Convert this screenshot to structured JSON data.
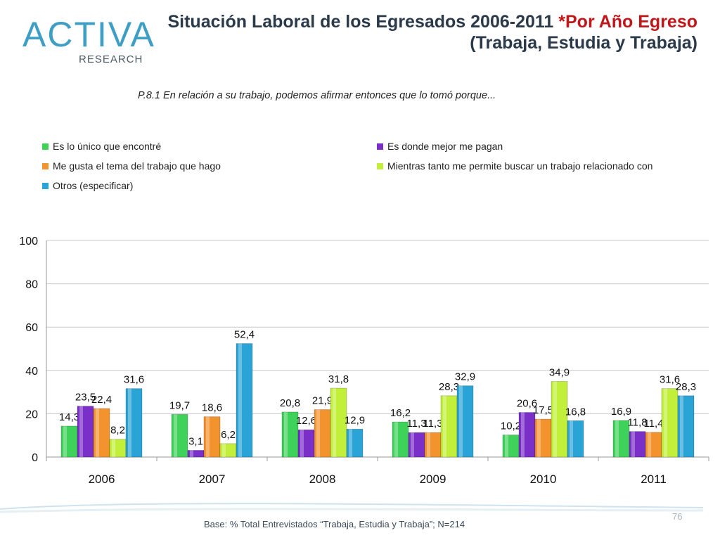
{
  "brand": {
    "name": "ACTIVA",
    "sub": "RESEARCH"
  },
  "title": {
    "main": "Situación Laboral de los Egresados 2006-2011 ",
    "accent": "*Por Año Egreso",
    "line2": "(Trabaja, Estudia y Trabaja)"
  },
  "subtitle": "P.8.1 En relación a su trabajo, podemos afirmar entonces que lo tomó porque...",
  "colors": {
    "green": "#3fd25a",
    "purple": "#7a2fc8",
    "orange": "#f3932e",
    "lime": "#c2ef3a",
    "teal": "#2aa4d6",
    "title": "#2a3a4a",
    "accent": "#c0171b"
  },
  "chart_data": {
    "type": "bar",
    "title": "",
    "xlabel": "",
    "ylabel": "",
    "ylim": [
      0,
      100
    ],
    "yticks": [
      0,
      20,
      40,
      60,
      80,
      100
    ],
    "categories": [
      "2006",
      "2007",
      "2008",
      "2009",
      "2010",
      "2011"
    ],
    "series": [
      {
        "name": "Es lo único que encontré",
        "color": "#3fd25a",
        "values": [
          14.3,
          19.7,
          20.8,
          16.2,
          10.2,
          16.9
        ],
        "labels": [
          "14,3",
          "19,7",
          "20,8",
          "16,2",
          "10,2",
          "16,9"
        ]
      },
      {
        "name": "Es donde mejor me pagan",
        "color": "#7a2fc8",
        "values": [
          23.5,
          3.1,
          12.6,
          11.3,
          20.6,
          11.8
        ],
        "labels": [
          "23,5",
          "3,1",
          "12,6",
          "11,3",
          "20,6",
          "11,8"
        ]
      },
      {
        "name": "Me gusta el tema del trabajo que hago",
        "color": "#f3932e",
        "values": [
          22.4,
          18.6,
          21.9,
          11.3,
          17.5,
          11.4
        ],
        "labels": [
          "22,4",
          "18,6",
          "21,9",
          "11,3",
          "17,5",
          "11,4"
        ]
      },
      {
        "name": "Mientras tanto me permite buscar un trabajo relacionado con",
        "color": "#c2ef3a",
        "values": [
          8.2,
          6.2,
          31.8,
          28.3,
          34.9,
          31.6
        ],
        "labels": [
          "8,2",
          "6,2",
          "31,8",
          "28,3",
          "34,9",
          "31,6"
        ]
      },
      {
        "name": "Otros (especificar)",
        "color": "#2aa4d6",
        "values": [
          31.6,
          52.4,
          12.9,
          32.9,
          16.8,
          28.3
        ],
        "labels": [
          "31,6",
          "52,4",
          "12,9",
          "32,9",
          "16,8",
          "28,3"
        ]
      }
    ],
    "legend_position": "top"
  },
  "footer": {
    "base": "Base: % Total Entrevistados “Trabaja, Estudia y Trabaja”; N=214",
    "page": "76"
  }
}
